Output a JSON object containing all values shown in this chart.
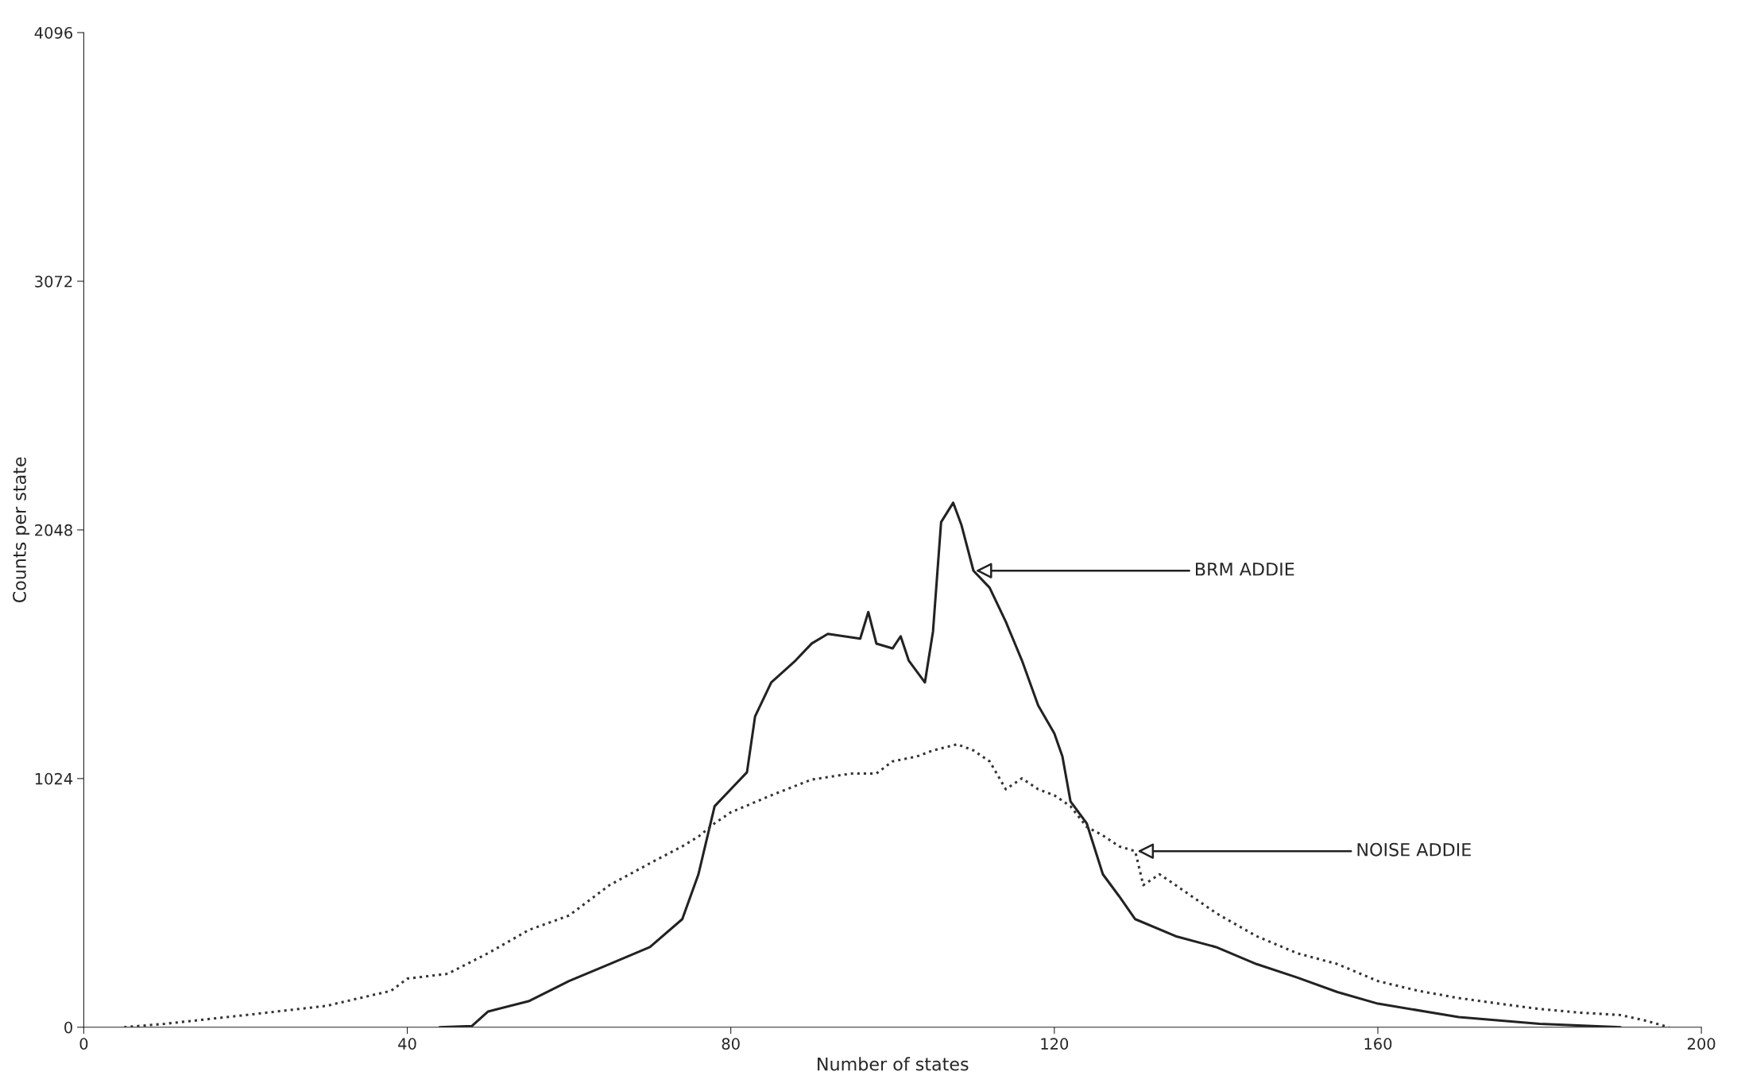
{
  "chart_data": {
    "type": "line",
    "xlabel": "Number of states",
    "ylabel": "Counts per state",
    "xlim": [
      0,
      200
    ],
    "ylim": [
      0,
      4096
    ],
    "xticks": [
      0,
      40,
      80,
      120,
      160,
      200
    ],
    "yticks": [
      0,
      1024,
      2048,
      3072,
      4096
    ],
    "grid": false,
    "legend": false,
    "series": [
      {
        "color": "#222222",
        "line_style": "solid",
        "x": [
          44,
          48,
          50,
          55,
          60,
          65,
          70,
          74,
          76,
          77,
          78,
          80,
          82,
          83,
          85,
          88,
          90,
          92,
          94,
          96,
          97,
          98,
          100,
          101,
          102,
          104,
          105,
          106,
          107.5,
          108.5,
          110,
          112,
          114,
          116,
          118,
          120,
          121,
          122,
          124,
          126,
          128,
          130,
          135,
          140,
          145,
          150,
          155,
          160,
          170,
          180,
          190
        ],
        "values": [
          0,
          5,
          65,
          107,
          190,
          260,
          330,
          445,
          630,
          770,
          910,
          980,
          1050,
          1280,
          1420,
          1510,
          1580,
          1620,
          1610,
          1600,
          1710,
          1580,
          1560,
          1610,
          1510,
          1420,
          1630,
          2080,
          2160,
          2070,
          1880,
          1810,
          1670,
          1510,
          1325,
          1210,
          1115,
          930,
          840,
          630,
          540,
          445,
          375,
          330,
          260,
          205,
          145,
          97,
          42,
          14,
          0
        ]
      },
      {
        "color": "#333333",
        "line_style": "dotted",
        "x": [
          5,
          10,
          20,
          30,
          38,
          40,
          45,
          50,
          55,
          60,
          65,
          70,
          74,
          76,
          78,
          80,
          85,
          90,
          95,
          98,
          100,
          103,
          105,
          108,
          110,
          112,
          114,
          116,
          118,
          120,
          122,
          124,
          126,
          128,
          130,
          131,
          133,
          135,
          140,
          145,
          150,
          155,
          160,
          165,
          170,
          175,
          180,
          185,
          190,
          193,
          196
        ],
        "values": [
          0,
          14,
          50,
          88,
          150,
          200,
          220,
          305,
          400,
          460,
          585,
          675,
          745,
          785,
          840,
          885,
          955,
          1020,
          1045,
          1045,
          1095,
          1115,
          1140,
          1165,
          1140,
          1095,
          980,
          1025,
          980,
          955,
          910,
          825,
          790,
          745,
          725,
          585,
          630,
          585,
          470,
          375,
          305,
          260,
          190,
          150,
          120,
          97,
          75,
          60,
          50,
          28,
          0
        ]
      }
    ],
    "annotations": [
      {
        "text": "BRM ADDIE",
        "x": 110,
        "y": 1880
      },
      {
        "text": "NOISE ADDIE",
        "x": 130,
        "y": 725
      }
    ]
  }
}
